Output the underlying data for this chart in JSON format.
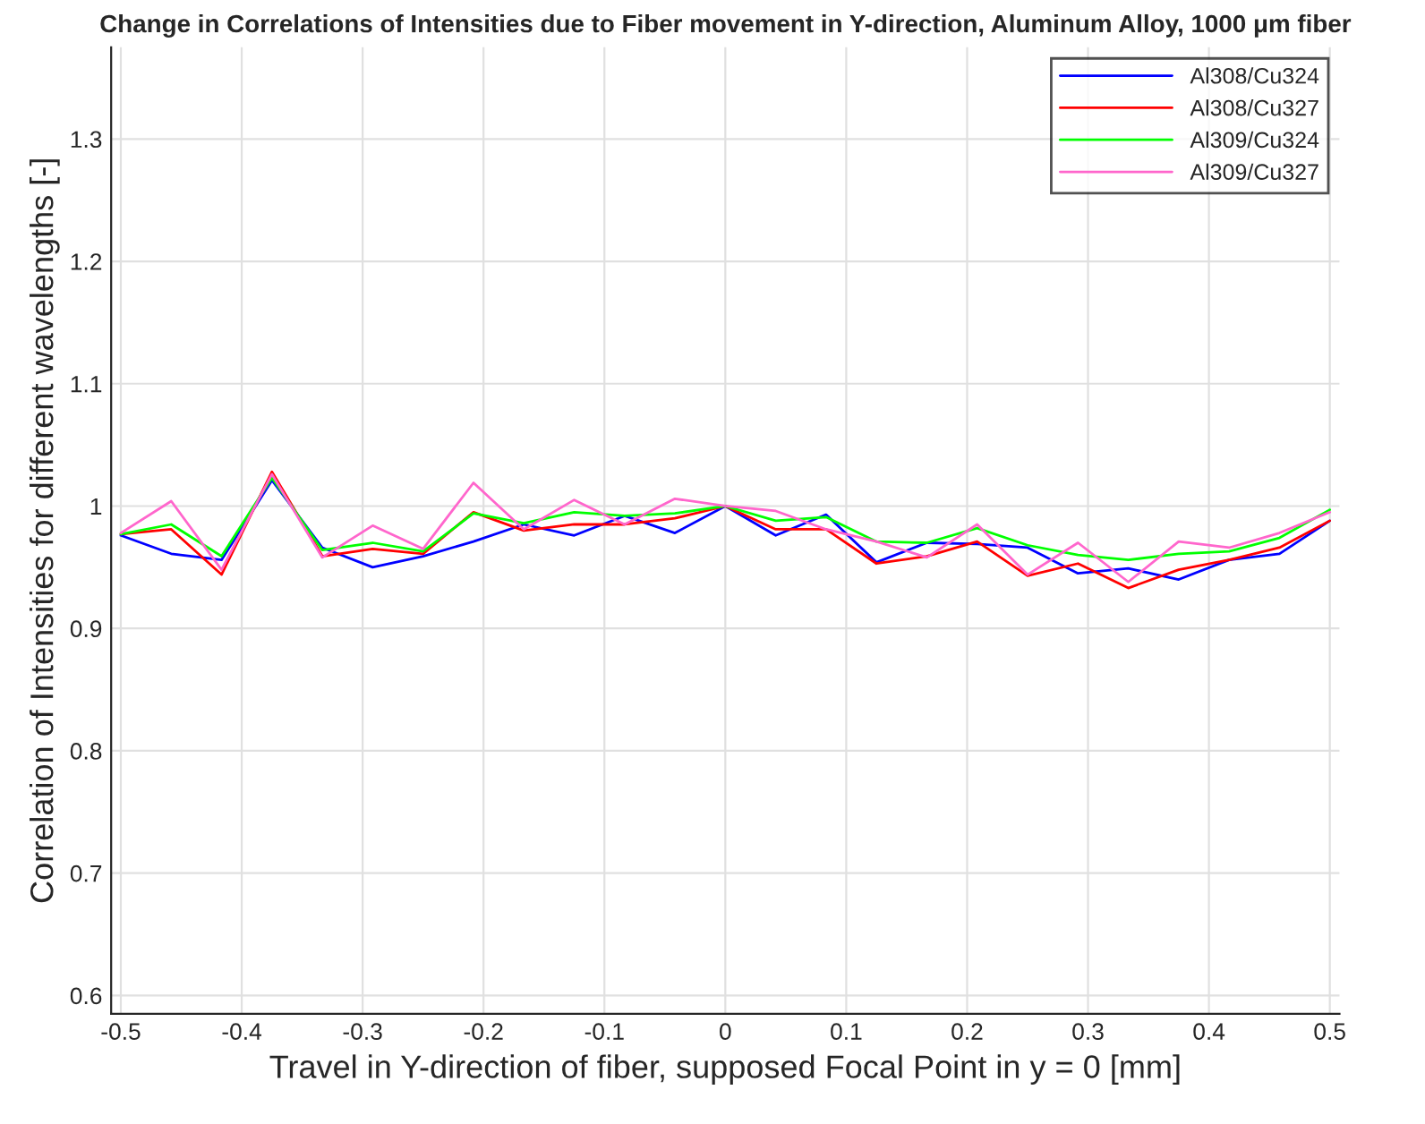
{
  "chart_data": {
    "type": "line",
    "title": "Change in Correlations of Intensities due to Fiber movement in Y-direction, Aluminum Alloy, 1000 μm fiber",
    "xlabel": "Travel in Y-direction of fiber, supposed Focal Point in y = 0 [mm]",
    "ylabel": "Correlation of Intensities for different wavelengths [-]",
    "x": [
      -0.5,
      -0.4583,
      -0.4167,
      -0.375,
      -0.3333,
      -0.2917,
      -0.25,
      -0.2083,
      -0.1667,
      -0.125,
      -0.0833,
      -0.0417,
      0,
      0.0417,
      0.0833,
      0.125,
      0.1667,
      0.2083,
      0.25,
      0.2917,
      0.3333,
      0.375,
      0.4167,
      0.4583,
      0.5
    ],
    "series": [
      {
        "name": "Al308/Cu324",
        "color": "#0000ff",
        "values": [
          0.976,
          0.961,
          0.956,
          1.021,
          0.966,
          0.95,
          0.959,
          0.971,
          0.985,
          0.976,
          0.992,
          0.978,
          1.0,
          0.976,
          0.993,
          0.954,
          0.97,
          0.969,
          0.966,
          0.945,
          0.949,
          0.94,
          0.956,
          0.961,
          0.988
        ]
      },
      {
        "name": "Al308/Cu327",
        "color": "#ff0000",
        "values": [
          0.977,
          0.981,
          0.944,
          1.028,
          0.959,
          0.965,
          0.961,
          0.995,
          0.98,
          0.985,
          0.985,
          0.99,
          1.0,
          0.981,
          0.981,
          0.953,
          0.959,
          0.971,
          0.943,
          0.953,
          0.933,
          0.948,
          0.956,
          0.966,
          0.988
        ]
      },
      {
        "name": "Al309/Cu324",
        "color": "#00ff00",
        "values": [
          0.977,
          0.985,
          0.959,
          1.023,
          0.964,
          0.97,
          0.963,
          0.994,
          0.986,
          0.995,
          0.992,
          0.994,
          1.0,
          0.988,
          0.991,
          0.971,
          0.97,
          0.982,
          0.968,
          0.96,
          0.956,
          0.961,
          0.963,
          0.974,
          0.997
        ]
      },
      {
        "name": "Al309/Cu327",
        "color": "#ff66cc",
        "values": [
          0.978,
          1.004,
          0.948,
          1.026,
          0.958,
          0.984,
          0.965,
          1.019,
          0.981,
          1.005,
          0.985,
          1.006,
          1.0,
          0.996,
          0.981,
          0.971,
          0.958,
          0.985,
          0.944,
          0.97,
          0.938,
          0.971,
          0.966,
          0.978,
          0.995
        ]
      }
    ],
    "xlim": [
      -0.508,
      0.508
    ],
    "xticks": [
      -0.5,
      -0.4,
      -0.3,
      -0.2,
      -0.1,
      0,
      0.1,
      0.2,
      0.3,
      0.4,
      0.5
    ],
    "ylim": [
      0.585,
      1.375
    ],
    "yticks": [
      0.6,
      0.7,
      0.8,
      0.9,
      1,
      1.1,
      1.2,
      1.3
    ],
    "grid": true,
    "legend": "top right",
    "marker": "none",
    "line_style": "solid"
  }
}
